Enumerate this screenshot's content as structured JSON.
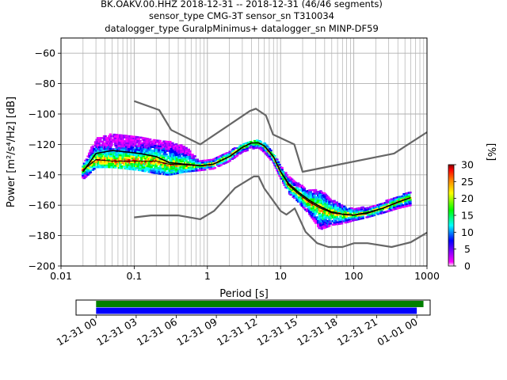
{
  "chart_data": [
    {
      "type": "heatmap",
      "title_lines": [
        "BK.OAKV.00.HHZ   2018-12-31 -- 2018-12-31  (46/46 segments)",
        "sensor_type CMG-3T sensor_sn T310034",
        "datalogger_type GuralpMinimus+ datalogger_sn MINP-DF59"
      ],
      "xlabel": "Period [s]",
      "ylabel": "Power [m²/s⁴/Hz] [dB]",
      "x_scale": "log",
      "xlim": [
        0.01,
        1000
      ],
      "ylim": [
        -200,
        -50
      ],
      "x_ticks": [
        0.01,
        0.1,
        1,
        10,
        100,
        1000
      ],
      "x_tick_labels": [
        "0.01",
        "0.1",
        "1",
        "10",
        "100",
        "1000"
      ],
      "y_ticks": [
        -200,
        -180,
        -160,
        -140,
        -120,
        -100,
        -80,
        -60
      ],
      "y_tick_labels": [
        "−200",
        "−180",
        "−160",
        "−140",
        "−120",
        "−100",
        "−80",
        "−60"
      ],
      "grid": true,
      "colorbar": {
        "label": "[%]",
        "range": [
          0,
          30
        ],
        "ticks": [
          0,
          5,
          10,
          15,
          20,
          25,
          30
        ],
        "tick_labels": [
          "0",
          "5",
          "10",
          "15",
          "20",
          "25",
          "30"
        ],
        "colormap": [
          "#ffffff",
          "#ff00ff",
          "#0000ff",
          "#00ffff",
          "#00ff00",
          "#ffff00",
          "#ff8000",
          "#ff0000",
          "#800000"
        ]
      },
      "series": [
        {
          "role": "new_high_noise_model",
          "color": "#666666",
          "x": [
            0.1,
            0.22,
            0.32,
            0.8,
            3.8,
            4.6,
            6.3,
            7.9,
            15.4,
            20,
            354.8,
            1000
          ],
          "y": [
            -91.5,
            -97.4,
            -110.5,
            -120,
            -98,
            -96.5,
            -101,
            -113.5,
            -120,
            -138,
            -126,
            -112
          ]
        },
        {
          "role": "new_low_noise_model",
          "color": "#666666",
          "x": [
            0.1,
            0.17,
            0.4,
            0.8,
            1.24,
            2.4,
            4.3,
            5,
            6,
            10,
            12,
            15.6,
            21.9,
            31.6,
            45,
            70,
            101,
            154,
            328,
            600,
            1000
          ],
          "y": [
            -168,
            -166.7,
            -166.7,
            -169.2,
            -163.7,
            -148.6,
            -141.1,
            -141.1,
            -149,
            -163.8,
            -166.2,
            -162.1,
            -177.5,
            -185,
            -187.5,
            -187.5,
            -185,
            -185,
            -187.5,
            -184.4,
            -178
          ]
        },
        {
          "role": "mean",
          "color": "#000000",
          "x": [
            0.02,
            0.03,
            0.05,
            0.08,
            0.12,
            0.2,
            0.3,
            0.5,
            0.8,
            1.2,
            2,
            3,
            4,
            5,
            6,
            8,
            10,
            13,
            17,
            25,
            35,
            50,
            70,
            100,
            150,
            250,
            400,
            600
          ],
          "y": [
            -138,
            -126,
            -124,
            -125,
            -126,
            -128,
            -132,
            -133,
            -134,
            -133,
            -128,
            -122,
            -119,
            -119,
            -121,
            -128,
            -138,
            -146,
            -151,
            -157,
            -161,
            -164.5,
            -166,
            -166.5,
            -165,
            -162,
            -158,
            -155
          ]
        },
        {
          "role": "mode",
          "color": "#000000",
          "x": [
            0.02,
            0.03,
            0.05,
            0.08,
            0.12,
            0.2,
            0.3,
            0.5,
            0.8,
            1.2,
            2,
            3,
            4,
            5,
            6,
            8,
            10,
            13,
            17,
            25,
            35,
            50,
            70,
            100,
            150,
            250,
            400,
            600
          ],
          "y": [
            -137,
            -130,
            -131,
            -131,
            -131,
            -131,
            -133,
            -133.5,
            -134,
            -133,
            -128,
            -122,
            -119,
            -119,
            -121,
            -128,
            -138,
            -147,
            -152,
            -158,
            -162,
            -165,
            -166,
            -166.5,
            -165.5,
            -162,
            -158,
            -155
          ]
        }
      ],
      "density_bands": [
        {
          "x": [
            0.02,
            0.03,
            0.05,
            0.08,
            0.12,
            0.2,
            0.3,
            0.5,
            0.8,
            1.2,
            2,
            3,
            4,
            5,
            6,
            8,
            10,
            13,
            17,
            25,
            35,
            50,
            70,
            100,
            150,
            250,
            400,
            600
          ],
          "low": [
            -143,
            -135,
            -135,
            -136,
            -137,
            -139,
            -140,
            -138,
            -137,
            -136,
            -131,
            -125,
            -123,
            -122,
            -125,
            -132,
            -142,
            -152,
            -157,
            -166,
            -176,
            -173,
            -172,
            -170,
            -168,
            -165,
            -162,
            -160
          ],
          "high": [
            -134,
            -116,
            -113,
            -114,
            -115,
            -117,
            -118,
            -121,
            -131,
            -130,
            -124,
            -120,
            -117,
            -117,
            -119,
            -125,
            -134,
            -141,
            -145,
            -150,
            -150,
            -156,
            -160,
            -162,
            -161,
            -158,
            -154,
            -151
          ]
        }
      ]
    },
    {
      "type": "timeline",
      "x_tick_labels": [
        "12-31 00",
        "12-31 03",
        "12-31 06",
        "12-31 09",
        "12-31 12",
        "12-31 15",
        "12-31 18",
        "12-31 21",
        "01-01 00"
      ],
      "x_range_hours": [
        -1.5,
        25
      ],
      "bars": [
        {
          "name": "green",
          "color": "#008000",
          "start_hours": 0,
          "end_hours": 24.5
        },
        {
          "name": "blue",
          "color": "#0000ff",
          "start_hours": 0,
          "end_hours": 24.0
        }
      ]
    }
  ]
}
